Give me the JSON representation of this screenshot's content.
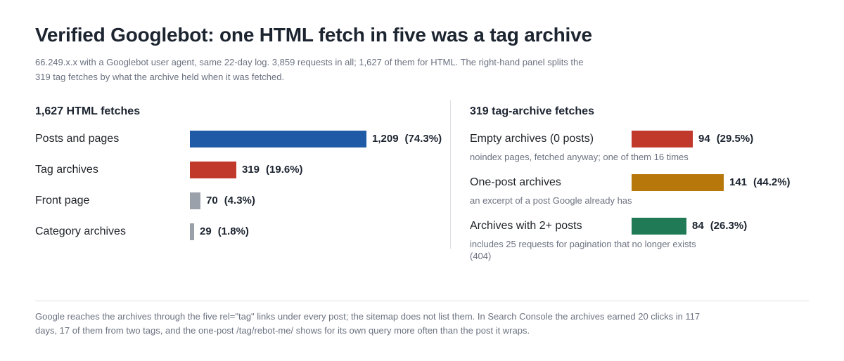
{
  "title": "Verified Googlebot: one HTML fetch in five was a tag archive",
  "subtitle": "66.249.x.x with a Googlebot user agent, same 22-day log. 3,859 requests in all; 1,627 of them for HTML. The right-hand panel splits the 319 tag fetches by what the archive held when it was fetched.",
  "footer": "Google reaches the archives through the five rel=\"tag\" links under every post; the sitemap does not list them. In Search Console the archives earned 20 clicks in 117 days, 17 of them from two tags, and the one-post /tag/rebot-me/ shows for its own query more often than the post it wraps.",
  "chart_data": [
    {
      "type": "bar",
      "orientation": "horizontal",
      "title": "1,627 HTML fetches",
      "categories": [
        "Posts and pages",
        "Tag archives",
        "Front page",
        "Category archives"
      ],
      "values": [
        1209,
        319,
        70,
        29
      ],
      "value_labels": [
        "1,209",
        "319",
        "70",
        "29"
      ],
      "percent_labels": [
        "(74.3%)",
        "(19.6%)",
        "(4.3%)",
        "(1.8%)"
      ],
      "notes": [
        "",
        "",
        "",
        ""
      ],
      "colors": [
        "#1f5aa6",
        "#c0392b",
        "#9aa1ab",
        "#9aa1ab"
      ],
      "xlim": [
        0,
        1209
      ]
    },
    {
      "type": "bar",
      "orientation": "horizontal",
      "title": "319 tag-archive fetches",
      "categories": [
        "Empty archives (0 posts)",
        "One-post archives",
        "Archives with 2+ posts"
      ],
      "values": [
        94,
        141,
        84
      ],
      "value_labels": [
        "94",
        "141",
        "84"
      ],
      "percent_labels": [
        "(29.5%)",
        "(44.2%)",
        "(26.3%)"
      ],
      "notes": [
        "noindex pages, fetched anyway; one of them 16 times",
        "an excerpt of a post Google already has",
        "includes 25 requests for pagination that no longer exists (404)"
      ],
      "colors": [
        "#c0392b",
        "#b7770a",
        "#1f7a55"
      ],
      "xlim": [
        0,
        141
      ]
    }
  ]
}
